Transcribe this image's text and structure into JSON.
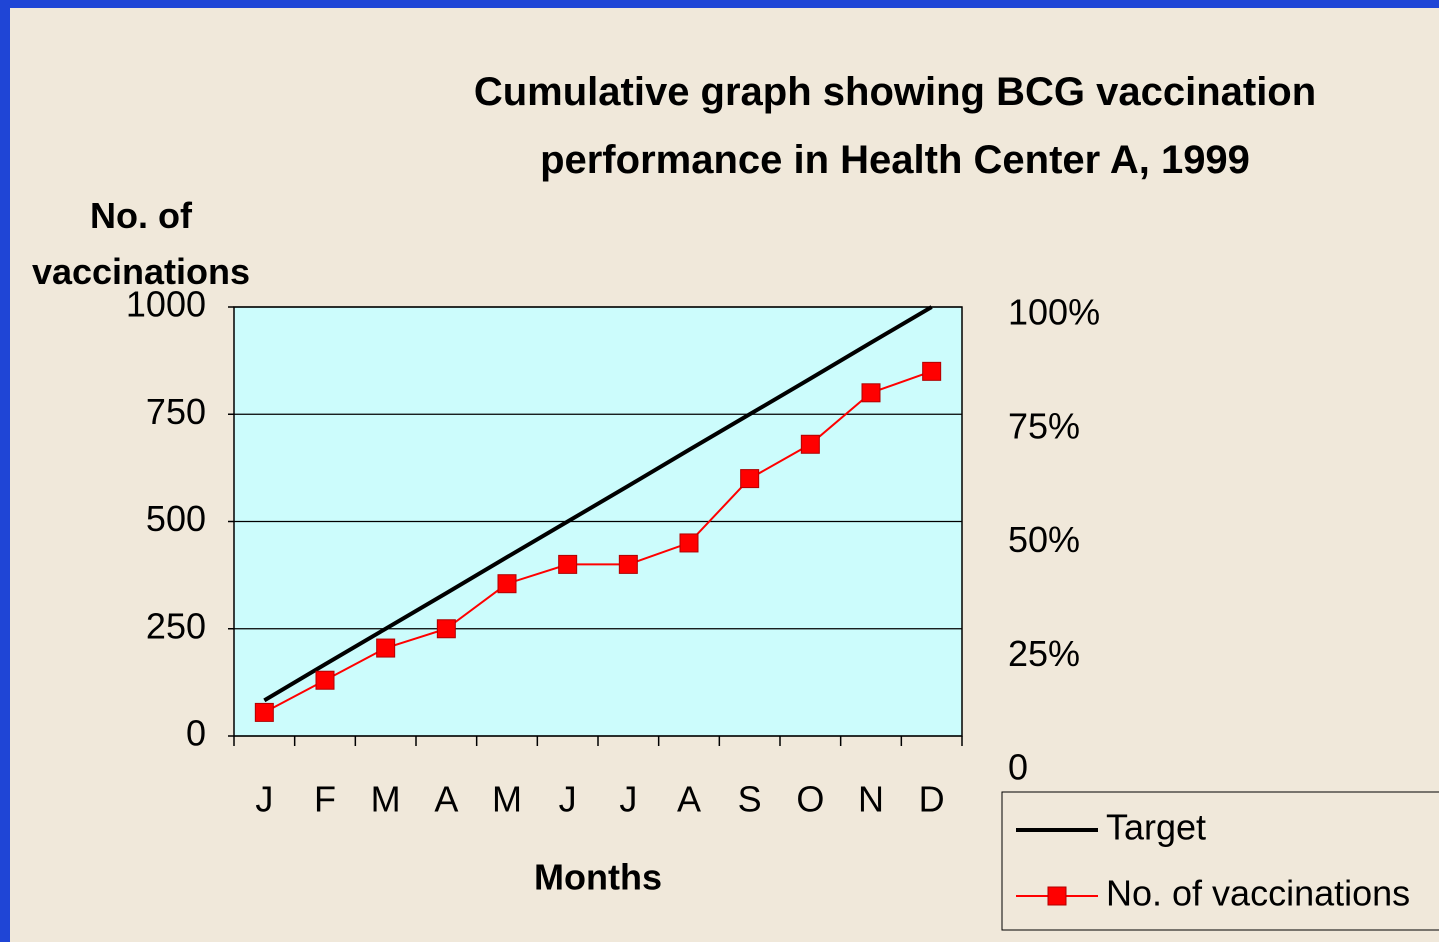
{
  "chart_data": {
    "type": "line",
    "title": "Cumulative graph showing BCG vaccination performance in Health Center A, 1999",
    "x_label": "Months",
    "y_label": "No. of vaccinations",
    "categories": [
      "J",
      "F",
      "M",
      "A",
      "M",
      "J",
      "J",
      "A",
      "S",
      "O",
      "N",
      "D"
    ],
    "series": [
      {
        "name": "Target",
        "color": "#000000",
        "marker": false,
        "values": [
          83,
          167,
          250,
          333,
          417,
          500,
          583,
          667,
          750,
          833,
          917,
          1000
        ]
      },
      {
        "name": "No. of vaccinations",
        "color": "#ff0000",
        "marker": true,
        "values": [
          55,
          130,
          205,
          250,
          355,
          400,
          400,
          450,
          600,
          680,
          800,
          850
        ]
      }
    ],
    "ylim": [
      0,
      1000
    ],
    "yticks": [
      0,
      250,
      500,
      750,
      1000
    ],
    "y2lim": [
      0,
      100
    ],
    "y2ticks": [
      0,
      {
        "value": 25,
        "label": "25%"
      },
      {
        "value": 50,
        "label": "50%"
      },
      {
        "value": 75,
        "label": "75%"
      },
      {
        "value": 100,
        "label": "100%"
      }
    ],
    "grid": true,
    "legend": "bottom-right"
  }
}
